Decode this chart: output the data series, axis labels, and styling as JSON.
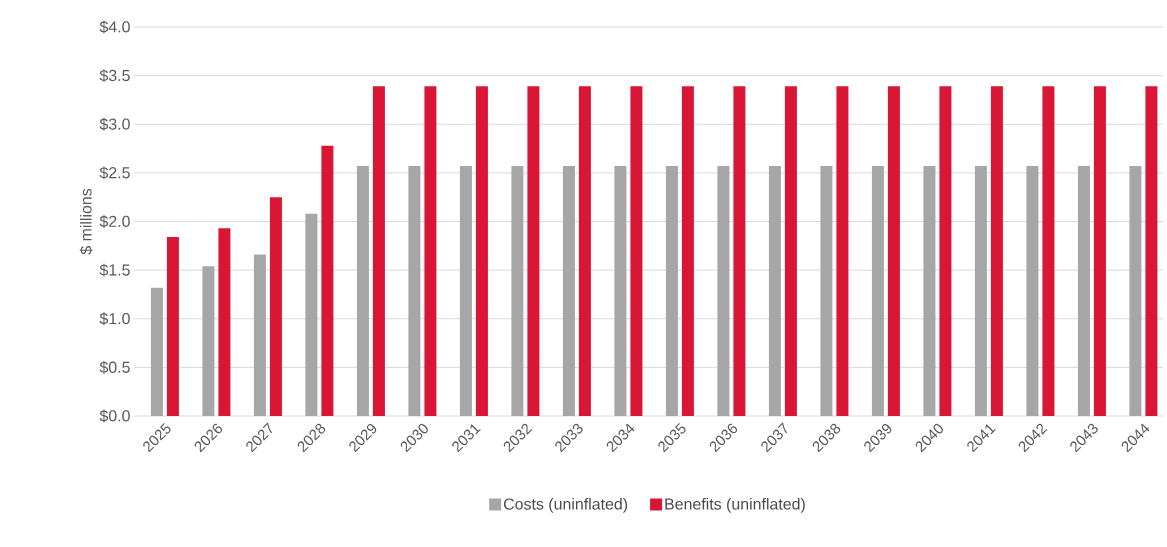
{
  "chart_data": {
    "type": "bar",
    "ylabel": "$ millions",
    "categories": [
      "2025",
      "2026",
      "2027",
      "2028",
      "2029",
      "2030",
      "2031",
      "2032",
      "2033",
      "2034",
      "2035",
      "2036",
      "2037",
      "2038",
      "2039",
      "2040",
      "2041",
      "2042",
      "2043",
      "2044"
    ],
    "series": [
      {
        "name": "Costs (uninflated)",
        "color": "#a6a6a6",
        "values": [
          1.32,
          1.54,
          1.66,
          2.08,
          2.57,
          2.57,
          2.57,
          2.57,
          2.57,
          2.57,
          2.57,
          2.57,
          2.57,
          2.57,
          2.57,
          2.57,
          2.57,
          2.57,
          2.57,
          2.57
        ]
      },
      {
        "name": "Benefits (uninflated)",
        "color": "#d91636",
        "values": [
          1.84,
          1.93,
          2.25,
          2.78,
          3.39,
          3.39,
          3.39,
          3.39,
          3.39,
          3.39,
          3.39,
          3.39,
          3.39,
          3.39,
          3.39,
          3.39,
          3.39,
          3.39,
          3.39,
          3.39
        ]
      }
    ],
    "ylim": [
      0,
      4
    ],
    "yticks": [
      {
        "value": 0,
        "label": "$0.0"
      },
      {
        "value": 0.5,
        "label": "$0.5"
      },
      {
        "value": 1,
        "label": "$1.0"
      },
      {
        "value": 1.5,
        "label": "$1.5"
      },
      {
        "value": 2,
        "label": "$2.0"
      },
      {
        "value": 2.5,
        "label": "$2.5"
      },
      {
        "value": 3,
        "label": "$3.0"
      },
      {
        "value": 3.5,
        "label": "$3.5"
      },
      {
        "value": 4,
        "label": "$4.0"
      }
    ],
    "grid": "y",
    "legend": "bottom"
  }
}
